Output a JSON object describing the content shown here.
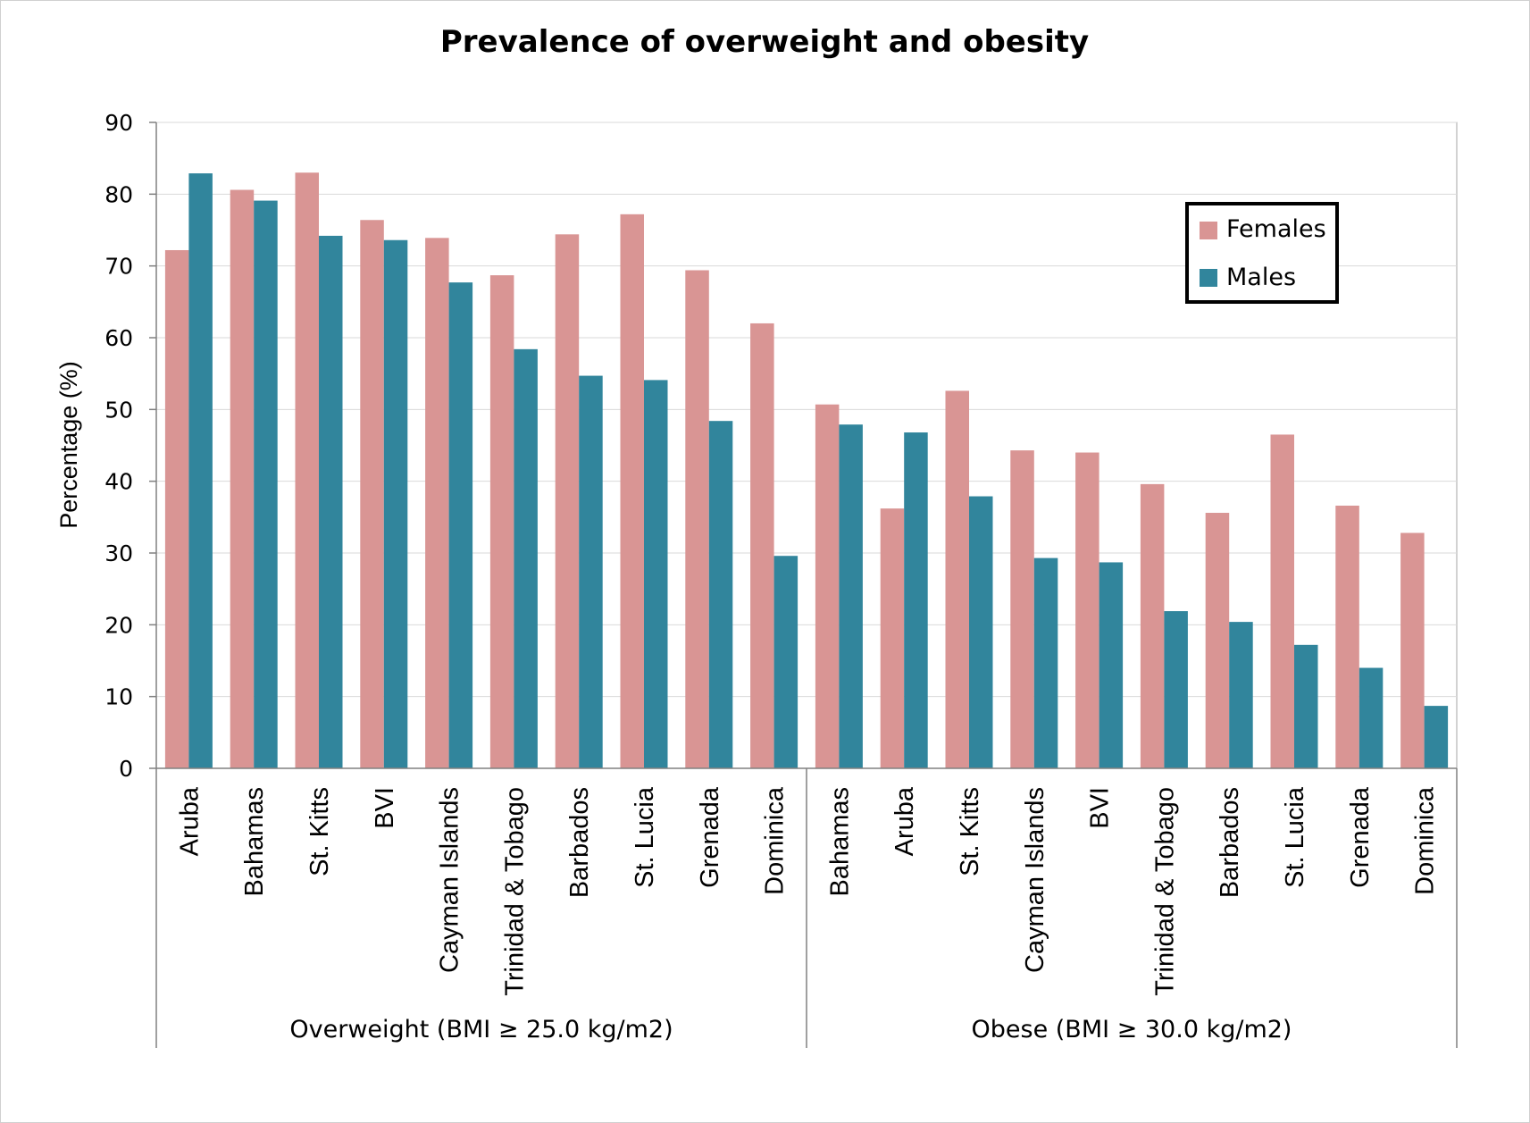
{
  "chart_data": {
    "type": "bar",
    "title": "Prevalence of overweight and obesity",
    "ylabel": "Percentage (%)",
    "ylim": [
      0,
      90
    ],
    "yticks": [
      0,
      10,
      20,
      30,
      40,
      50,
      60,
      70,
      80,
      90
    ],
    "grid": true,
    "legend_position": "top-right",
    "groups": [
      {
        "label": "Overweight (BMI ≥ 25.0 kg/m2)",
        "categories": [
          "Aruba",
          "Bahamas",
          "St. Kitts",
          "BVI",
          "Cayman Islands",
          "Trinidad & Tobago",
          "Barbados",
          "St. Lucia",
          "Grenada",
          "Dominica"
        ]
      },
      {
        "label": "Obese (BMI ≥ 30.0 kg/m2)",
        "categories": [
          "Bahamas",
          "Aruba",
          "St. Kitts",
          "Cayman Islands",
          "BVI",
          "Trinidad & Tobago",
          "Barbados",
          "St. Lucia",
          "Grenada",
          "Dominica"
        ]
      }
    ],
    "series": [
      {
        "name": "Females",
        "color": "#d99594",
        "values": [
          72.2,
          80.6,
          83.0,
          76.4,
          73.9,
          68.7,
          74.4,
          77.2,
          69.4,
          62.0,
          50.7,
          36.2,
          52.6,
          44.3,
          44.0,
          39.6,
          35.6,
          46.5,
          36.6,
          32.8
        ]
      },
      {
        "name": "Males",
        "color": "#31859c",
        "values": [
          82.9,
          79.1,
          74.2,
          73.6,
          67.7,
          58.4,
          54.7,
          54.1,
          48.4,
          29.6,
          47.9,
          46.8,
          37.9,
          29.3,
          28.7,
          21.9,
          20.4,
          17.2,
          14.0,
          8.7
        ]
      }
    ]
  }
}
